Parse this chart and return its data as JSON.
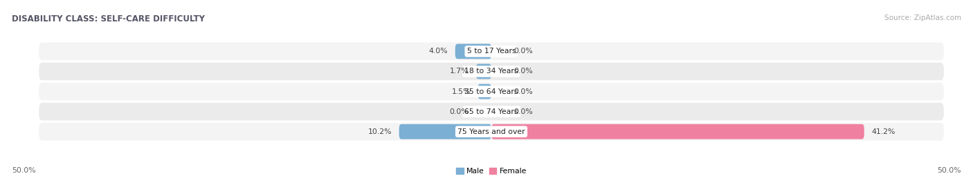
{
  "title": "DISABILITY CLASS: SELF-CARE DIFFICULTY",
  "source": "Source: ZipAtlas.com",
  "categories": [
    "5 to 17 Years",
    "18 to 34 Years",
    "35 to 64 Years",
    "65 to 74 Years",
    "75 Years and over"
  ],
  "male_values": [
    4.0,
    1.7,
    1.5,
    0.0,
    10.2
  ],
  "female_values": [
    0.0,
    0.0,
    0.0,
    0.0,
    41.2
  ],
  "max_val": 50.0,
  "male_color": "#7bafd4",
  "female_color": "#f080a0",
  "row_bg_color_light": "#f4f4f4",
  "row_bg_color_dark": "#ebebeb",
  "title_fontsize": 8.5,
  "label_fontsize": 7.8,
  "source_fontsize": 7.5,
  "axis_label_fontsize": 7.8,
  "cat_label_fontsize": 7.8
}
